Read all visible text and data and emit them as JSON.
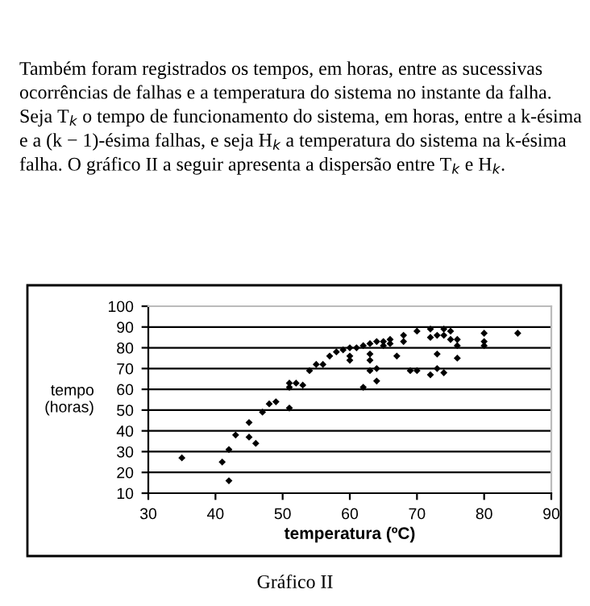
{
  "chart_data": {
    "type": "scatter",
    "xlabel": "temperatura (ºC)",
    "ylabel": "tempo\n(horas)",
    "annotations": [
      "Também foram registrados os tempos, em horas, entre as sucessivas ocorrências de falhas e a temperatura do sistema no instante da falha. Seja T$_{k}$ o tempo de funcionamento do sistema, em horas, entre a k-ésima e a (k − 1)-ésima falhas, e seja H$_{k}$ a temperatura do sistema na k-ésima falha. O gráfico II a seguir apresenta a dispersão entre T$_{k}$ e H$_{k}$.",
      "Gráfico II"
    ],
    "x": [
      35,
      41,
      42,
      42,
      43,
      45,
      45,
      46,
      47,
      48,
      49,
      51,
      51,
      51,
      52,
      53,
      54,
      55,
      56,
      57,
      58,
      59,
      60,
      60,
      60,
      61,
      62,
      62,
      63,
      63,
      63,
      63,
      64,
      64,
      64,
      65,
      65,
      66,
      66,
      67,
      68,
      68,
      69,
      70,
      70,
      72,
      72,
      72,
      73,
      73,
      73,
      74,
      74,
      74,
      75,
      75,
      76,
      76,
      76,
      80,
      80,
      80,
      85
    ],
    "series": [
      {
        "color": "#000000",
        "values": [
          27,
          25,
          31,
          16,
          38,
          44,
          37,
          34,
          49,
          53,
          54,
          51,
          61,
          63,
          63,
          62,
          69,
          72,
          72,
          76,
          78,
          79,
          80,
          76,
          74,
          80,
          61,
          81,
          82,
          77,
          74,
          69,
          83,
          70,
          64,
          81,
          83,
          84,
          82,
          76,
          86,
          83,
          69,
          88,
          69,
          89,
          85,
          67,
          86,
          77,
          70,
          86,
          68,
          89,
          88,
          84,
          84,
          81,
          75,
          87,
          83,
          81,
          87
        ]
      }
    ],
    "xlim": [
      30,
      90
    ],
    "xticks": [
      30,
      40,
      50,
      60,
      70,
      80,
      90
    ],
    "ylim": [
      10,
      100
    ],
    "yticks": [
      10,
      20,
      30,
      40,
      50,
      60,
      70,
      80,
      90,
      100
    ],
    "grid": "y",
    "marker": "diamond"
  }
}
